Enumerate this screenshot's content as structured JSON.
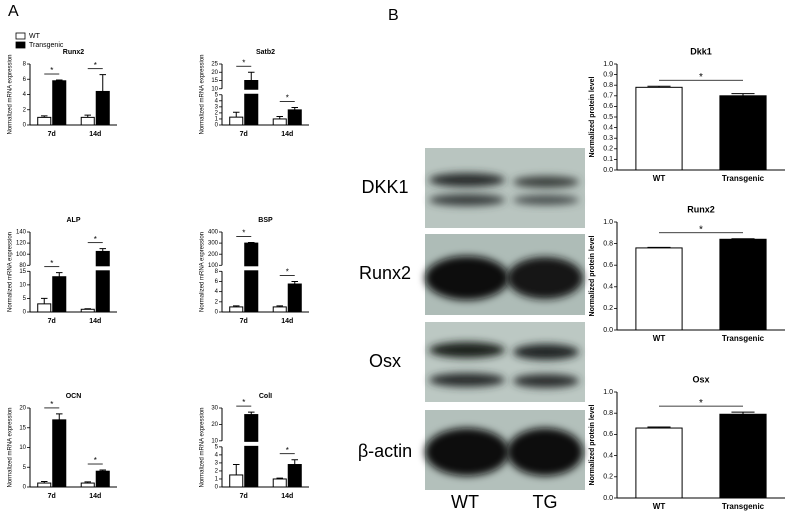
{
  "panel_labels": [
    "A",
    "B"
  ],
  "blot": {
    "proteins": [
      "DKK1",
      "Runx2",
      "Osx",
      "β-actin"
    ],
    "lanes": [
      "WT",
      "TG"
    ]
  },
  "chart_data": [
    {
      "type": "bar",
      "title": "Runx2",
      "ylabel": "Normalized mRNA expression",
      "categories": [
        "7d",
        "14d"
      ],
      "series": [
        {
          "name": "WT",
          "color": "#ffffff",
          "values": [
            1.0,
            1.0
          ],
          "errors": [
            0.2,
            0.3
          ]
        },
        {
          "name": "Transgenic",
          "color": "#000000",
          "values": [
            5.8,
            4.4
          ],
          "errors": [
            0.1,
            2.2
          ]
        }
      ],
      "ylim": [
        0,
        8
      ],
      "yticks": [
        0,
        2,
        4,
        6,
        8
      ],
      "annotations": [
        "*",
        "*"
      ]
    },
    {
      "type": "bar",
      "title": "Satb2",
      "ylabel": "Normalized mRNA expression",
      "categories": [
        "7d",
        "14d"
      ],
      "series": [
        {
          "color": "#ffffff",
          "values": [
            1.3,
            1.0
          ],
          "errors": [
            0.8,
            0.4
          ]
        },
        {
          "color": "#000000",
          "values": [
            15,
            2.5
          ],
          "errors": [
            5,
            0.4
          ]
        }
      ],
      "ylim": [
        0,
        25
      ],
      "ybreak": [
        5,
        10
      ],
      "yticks": [
        0,
        1,
        2,
        3,
        4,
        5,
        10,
        15,
        20,
        25
      ],
      "annotations": [
        "*",
        "*"
      ]
    },
    {
      "type": "bar",
      "title": "ALP",
      "ylabel": "Normalized mRNA expression",
      "categories": [
        "7d",
        "14d"
      ],
      "series": [
        {
          "color": "#ffffff",
          "values": [
            3,
            1
          ],
          "errors": [
            2,
            0.2
          ]
        },
        {
          "color": "#000000",
          "values": [
            13,
            105
          ],
          "errors": [
            1.5,
            5
          ]
        }
      ],
      "ylim": [
        0,
        140
      ],
      "ybreak": [
        15,
        80
      ],
      "yticks": [
        0,
        5,
        10,
        15,
        80,
        100,
        120,
        140
      ],
      "annotations": [
        "*",
        "*"
      ]
    },
    {
      "type": "bar",
      "title": "BSP",
      "ylabel": "Normalized mRNA expression",
      "categories": [
        "7d",
        "14d"
      ],
      "series": [
        {
          "color": "#ffffff",
          "values": [
            1,
            1
          ],
          "errors": [
            0.2,
            0.2
          ]
        },
        {
          "color": "#000000",
          "values": [
            300,
            5.5
          ],
          "errors": [
            5,
            0.5
          ]
        }
      ],
      "ylim": [
        0,
        400
      ],
      "ybreak": [
        8,
        100
      ],
      "yticks": [
        0,
        2,
        4,
        6,
        8,
        100,
        200,
        300,
        400
      ],
      "annotations": [
        "*",
        "*"
      ]
    },
    {
      "type": "bar",
      "title": "OCN",
      "ylabel": "Normalized mRNA expression",
      "categories": [
        "7d",
        "14d"
      ],
      "series": [
        {
          "color": "#ffffff",
          "values": [
            1,
            1
          ],
          "errors": [
            0.4,
            0.3
          ]
        },
        {
          "color": "#000000",
          "values": [
            17,
            4
          ],
          "errors": [
            1.5,
            0.3
          ]
        }
      ],
      "ylim": [
        0,
        20
      ],
      "yticks": [
        0,
        5,
        10,
        15,
        20
      ],
      "annotations": [
        "*",
        "*"
      ]
    },
    {
      "type": "bar",
      "title": "ColI",
      "ylabel": "Normalized mRNA expression",
      "categories": [
        "7d",
        "14d"
      ],
      "series": [
        {
          "color": "#ffffff",
          "values": [
            1.5,
            1
          ],
          "errors": [
            1.3,
            0.1
          ]
        },
        {
          "color": "#000000",
          "values": [
            26,
            2.8
          ],
          "errors": [
            1.5,
            0.6
          ]
        }
      ],
      "ylim": [
        0,
        30
      ],
      "ybreak": [
        5,
        10
      ],
      "yticks": [
        0,
        1,
        2,
        3,
        4,
        5,
        10,
        20,
        30
      ],
      "annotations": [
        "*",
        "*"
      ]
    },
    {
      "type": "bar",
      "title": "Dkk1",
      "ylabel": "Normalized protein level",
      "categories": [
        "WT",
        "Transgenic"
      ],
      "values": [
        0.78,
        0.7
      ],
      "errors": [
        0.01,
        0.02
      ],
      "colors": [
        "#ffffff",
        "#000000"
      ],
      "ylim": [
        0,
        1
      ],
      "yticks": [
        {
          "value": 0,
          "label": "0.0"
        },
        0.1,
        0.2,
        0.3,
        0.4,
        0.5,
        0.6,
        0.7,
        0.8,
        0.9,
        {
          "value": 1,
          "label": "1.0"
        }
      ],
      "annotations": [
        "*"
      ]
    },
    {
      "type": "bar",
      "title": "Runx2",
      "ylabel": "Normalized protein level",
      "categories": [
        "WT",
        "Transgenic"
      ],
      "values": [
        0.76,
        0.84
      ],
      "errors": [
        0.005,
        0.005
      ],
      "colors": [
        "#ffffff",
        "#000000"
      ],
      "ylim": [
        0,
        1
      ],
      "yticks": [
        {
          "value": 0,
          "label": "0.0"
        },
        0.2,
        0.4,
        0.6,
        0.8,
        {
          "value": 1,
          "label": "1.0"
        }
      ],
      "annotations": [
        "*"
      ]
    },
    {
      "type": "bar",
      "title": "Osx",
      "ylabel": "Normalized protein level",
      "categories": [
        "WT",
        "Transgenic"
      ],
      "values": [
        0.66,
        0.79
      ],
      "errors": [
        0.01,
        0.02
      ],
      "colors": [
        "#ffffff",
        "#000000"
      ],
      "ylim": [
        0,
        1
      ],
      "yticks": [
        {
          "value": 0,
          "label": "0.0"
        },
        0.2,
        0.4,
        0.6,
        0.8,
        {
          "value": 1,
          "label": "1.0"
        }
      ],
      "annotations": [
        "*"
      ]
    }
  ]
}
